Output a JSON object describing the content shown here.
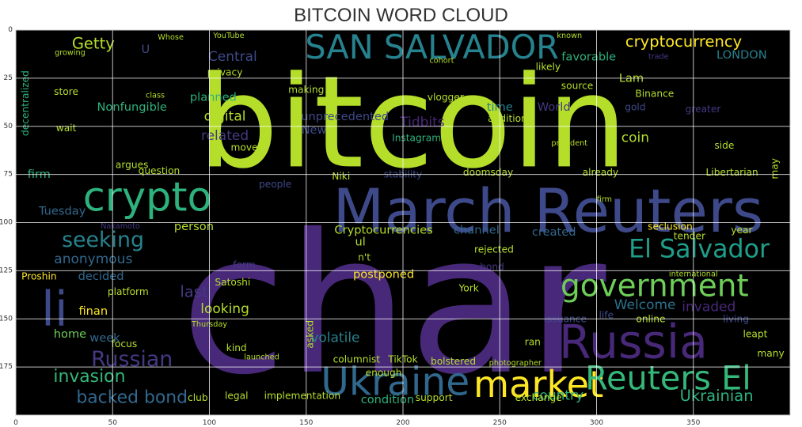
{
  "chart_data": {
    "type": "wordcloud",
    "title": "BITCOIN WORD CLOUD",
    "xlabel": "",
    "ylabel": "",
    "xlim": [
      0,
      400
    ],
    "ylim": [
      200,
      0
    ],
    "xticks": [
      0,
      50,
      100,
      150,
      200,
      250,
      300,
      350
    ],
    "yticks": [
      0,
      25,
      50,
      75,
      100,
      125,
      150,
      175
    ],
    "grid": true,
    "background": "#000000",
    "words": [
      {
        "text": "bitcoin",
        "x": 205,
        "y": 48,
        "size": 66,
        "color": "#b5de2b"
      },
      {
        "text": "char",
        "x": 195,
        "y": 143,
        "size": 100,
        "color": "#482878"
      },
      {
        "text": "crypto",
        "x": 68,
        "y": 87,
        "size": 21,
        "color": "#2db27d"
      },
      {
        "text": "March Reuters",
        "x": 275,
        "y": 94,
        "size": 31,
        "color": "#3e4989"
      },
      {
        "text": "SAN SALVADOR",
        "x": 215,
        "y": 9,
        "size": 17,
        "color": "#26828e"
      },
      {
        "text": "cryptocurrency",
        "x": 345,
        "y": 6,
        "size": 8,
        "color": "#fde725"
      },
      {
        "text": "Ukraine",
        "x": 196,
        "y": 183,
        "size": 20,
        "color": "#31688e"
      },
      {
        "text": "Russia",
        "x": 319,
        "y": 162,
        "size": 24,
        "color": "#482878"
      },
      {
        "text": "government",
        "x": 330,
        "y": 133,
        "size": 16,
        "color": "#6ece58"
      },
      {
        "text": "market",
        "x": 270,
        "y": 184,
        "size": 19,
        "color": "#fde725"
      },
      {
        "text": "Reuters El",
        "x": 337,
        "y": 181,
        "size": 17,
        "color": "#35b779"
      },
      {
        "text": "El Salvador",
        "x": 353,
        "y": 114,
        "size": 13,
        "color": "#1f9e89"
      },
      {
        "text": "li",
        "x": 20,
        "y": 145,
        "size": 25,
        "color": "#3e4989"
      },
      {
        "text": "seeking",
        "x": 45,
        "y": 109,
        "size": 11,
        "color": "#26828e"
      },
      {
        "text": "Russian",
        "x": 60,
        "y": 171,
        "size": 11,
        "color": "#443983"
      },
      {
        "text": "invasion",
        "x": 38,
        "y": 180,
        "size": 9,
        "color": "#35b779"
      },
      {
        "text": "backed bond",
        "x": 60,
        "y": 191,
        "size": 9,
        "color": "#31688e"
      },
      {
        "text": "anonymous",
        "x": 40,
        "y": 119,
        "size": 7,
        "color": "#31688e"
      },
      {
        "text": "Welcome",
        "x": 325,
        "y": 143,
        "size": 7,
        "color": "#2c728e"
      },
      {
        "text": "invaded",
        "x": 358,
        "y": 144,
        "size": 7,
        "color": "#482878"
      },
      {
        "text": "country",
        "x": 280,
        "y": 190,
        "size": 7,
        "color": "#2db27d"
      },
      {
        "text": "Ukrainian",
        "x": 362,
        "y": 190,
        "size": 8,
        "color": "#2db27d"
      },
      {
        "text": "Getty",
        "x": 40,
        "y": 7,
        "size": 8,
        "color": "#b5de2b"
      },
      {
        "text": "Central",
        "x": 112,
        "y": 14,
        "size": 7,
        "color": "#3e4989"
      },
      {
        "text": "favorable",
        "x": 296,
        "y": 14,
        "size": 6,
        "color": "#2db27d"
      },
      {
        "text": "LONDON",
        "x": 375,
        "y": 13,
        "size": 6,
        "color": "#26828e"
      },
      {
        "text": "digital",
        "x": 108,
        "y": 45,
        "size": 7,
        "color": "#b5de2b"
      },
      {
        "text": "related",
        "x": 108,
        "y": 55,
        "size": 7,
        "color": "#443983"
      },
      {
        "text": "planned",
        "x": 102,
        "y": 35,
        "size": 6,
        "color": "#2db27d"
      },
      {
        "text": "Tidbits",
        "x": 210,
        "y": 48,
        "size": 7,
        "color": "#482878"
      },
      {
        "text": "New",
        "x": 154,
        "y": 52,
        "size": 6,
        "color": "#3e4989"
      },
      {
        "text": "coin",
        "x": 320,
        "y": 56,
        "size": 7,
        "color": "#b5de2b"
      },
      {
        "text": "Cryptocurrencies",
        "x": 190,
        "y": 104,
        "size": 6,
        "color": "#b5de2b"
      },
      {
        "text": "channel",
        "x": 238,
        "y": 104,
        "size": 6,
        "color": "#31688e"
      },
      {
        "text": "created",
        "x": 278,
        "y": 105,
        "size": 6,
        "color": "#31688e"
      },
      {
        "text": "person",
        "x": 92,
        "y": 102,
        "size": 6,
        "color": "#b5de2b"
      },
      {
        "text": "Tuesday",
        "x": 24,
        "y": 94,
        "size": 6,
        "color": "#31688e"
      },
      {
        "text": "last",
        "x": 92,
        "y": 136,
        "size": 8,
        "color": "#443983"
      },
      {
        "text": "looking",
        "x": 108,
        "y": 145,
        "size": 7,
        "color": "#b5de2b"
      },
      {
        "text": "decided",
        "x": 44,
        "y": 128,
        "size": 6,
        "color": "#31688e"
      },
      {
        "text": "postponed",
        "x": 190,
        "y": 127,
        "size": 6,
        "color": "#fde725"
      },
      {
        "text": "volatile",
        "x": 165,
        "y": 160,
        "size": 7,
        "color": "#26828e"
      },
      {
        "text": "home",
        "x": 28,
        "y": 158,
        "size": 6,
        "color": "#6ece58"
      },
      {
        "text": "week",
        "x": 46,
        "y": 160,
        "size": 6,
        "color": "#31688e"
      },
      {
        "text": "finan",
        "x": 40,
        "y": 146,
        "size": 6,
        "color": "#fde725"
      },
      {
        "text": "condition",
        "x": 192,
        "y": 192,
        "size": 6,
        "color": "#2db27d"
      },
      {
        "text": "Nonfungible",
        "x": 60,
        "y": 40,
        "size": 6,
        "color": "#2db27d"
      },
      {
        "text": "unprecedented",
        "x": 170,
        "y": 45,
        "size": 6,
        "color": "#3e4989"
      },
      {
        "text": "World",
        "x": 278,
        "y": 40,
        "size": 6,
        "color": "#443983"
      },
      {
        "text": "time",
        "x": 250,
        "y": 40,
        "size": 6,
        "color": "#26828e"
      },
      {
        "text": "Lam",
        "x": 318,
        "y": 25,
        "size": 6,
        "color": "#b5de2b"
      },
      {
        "text": "U",
        "x": 67,
        "y": 10,
        "size": 6,
        "color": "#3e4989"
      },
      {
        "text": "firm",
        "x": 12,
        "y": 75,
        "size": 6,
        "color": "#2db27d"
      },
      {
        "text": "argues",
        "x": 60,
        "y": 70,
        "size": 5,
        "color": "#b5de2b"
      },
      {
        "text": "Proshin",
        "x": 12,
        "y": 128,
        "size": 5,
        "color": "#fde725"
      },
      {
        "text": "platform",
        "x": 58,
        "y": 136,
        "size": 5,
        "color": "#b5de2b"
      },
      {
        "text": "Niki",
        "x": 168,
        "y": 76,
        "size": 5,
        "color": "#b5de2b"
      },
      {
        "text": "stability",
        "x": 200,
        "y": 75,
        "size": 5,
        "color": "#3e4989"
      },
      {
        "text": "Instagram",
        "x": 207,
        "y": 56,
        "size": 5,
        "color": "#2db27d"
      },
      {
        "text": "vlogger",
        "x": 222,
        "y": 35,
        "size": 5,
        "color": "#b5de2b"
      },
      {
        "text": "making",
        "x": 150,
        "y": 31,
        "size": 5,
        "color": "#b5de2b"
      },
      {
        "text": "privacy",
        "x": 108,
        "y": 22,
        "size": 5,
        "color": "#b5de2b"
      },
      {
        "text": "YouTube",
        "x": 110,
        "y": 3,
        "size": 4,
        "color": "#b5de2b"
      },
      {
        "text": "Satoshi",
        "x": 112,
        "y": 131,
        "size": 5,
        "color": "#b5de2b"
      },
      {
        "text": "York",
        "x": 234,
        "y": 134,
        "size": 5,
        "color": "#b5de2b"
      },
      {
        "text": "issuance",
        "x": 284,
        "y": 150,
        "size": 5,
        "color": "#3e4989"
      },
      {
        "text": "online",
        "x": 328,
        "y": 150,
        "size": 5,
        "color": "#b5de2b"
      },
      {
        "text": "living",
        "x": 372,
        "y": 150,
        "size": 5,
        "color": "#3e4989"
      },
      {
        "text": "leapt",
        "x": 382,
        "y": 158,
        "size": 5,
        "color": "#b5de2b"
      },
      {
        "text": "many",
        "x": 390,
        "y": 168,
        "size": 5,
        "color": "#b5de2b"
      },
      {
        "text": "columnist",
        "x": 176,
        "y": 171,
        "size": 5,
        "color": "#b5de2b"
      },
      {
        "text": "bolstered",
        "x": 226,
        "y": 172,
        "size": 5,
        "color": "#b5de2b"
      },
      {
        "text": "implementation",
        "x": 148,
        "y": 190,
        "size": 5,
        "color": "#b5de2b"
      },
      {
        "text": "support",
        "x": 216,
        "y": 191,
        "size": 5,
        "color": "#b5de2b"
      },
      {
        "text": "exchange",
        "x": 270,
        "y": 191,
        "size": 5,
        "color": "#b5de2b"
      },
      {
        "text": "legal",
        "x": 114,
        "y": 190,
        "size": 5,
        "color": "#b5de2b"
      },
      {
        "text": "club",
        "x": 94,
        "y": 191,
        "size": 5,
        "color": "#b5de2b"
      },
      {
        "text": "rejected",
        "x": 247,
        "y": 114,
        "size": 5,
        "color": "#b5de2b"
      },
      {
        "text": "bond",
        "x": 246,
        "y": 123,
        "size": 5,
        "color": "#443983"
      },
      {
        "text": "seclusion",
        "x": 338,
        "y": 102,
        "size": 5,
        "color": "#fde725"
      },
      {
        "text": "tender",
        "x": 348,
        "y": 107,
        "size": 5,
        "color": "#b5de2b"
      },
      {
        "text": "year",
        "x": 375,
        "y": 104,
        "size": 5,
        "color": "#b5de2b"
      },
      {
        "text": "Binance",
        "x": 330,
        "y": 33,
        "size": 5,
        "color": "#b5de2b"
      },
      {
        "text": "gold",
        "x": 320,
        "y": 40,
        "size": 5,
        "color": "#3e4989"
      },
      {
        "text": "greater",
        "x": 355,
        "y": 41,
        "size": 5,
        "color": "#443983"
      },
      {
        "text": "Libertarian",
        "x": 370,
        "y": 74,
        "size": 5,
        "color": "#b5de2b"
      },
      {
        "text": "already",
        "x": 302,
        "y": 74,
        "size": 5,
        "color": "#b5de2b"
      },
      {
        "text": "side",
        "x": 366,
        "y": 60,
        "size": 5,
        "color": "#b5de2b"
      },
      {
        "text": "source",
        "x": 290,
        "y": 29,
        "size": 5,
        "color": "#b5de2b"
      },
      {
        "text": "likely",
        "x": 275,
        "y": 19,
        "size": 5,
        "color": "#b5de2b"
      },
      {
        "text": "wait",
        "x": 26,
        "y": 51,
        "size": 5,
        "color": "#b5de2b"
      },
      {
        "text": "store",
        "x": 26,
        "y": 32,
        "size": 5,
        "color": "#b5de2b"
      },
      {
        "text": "move",
        "x": 118,
        "y": 61,
        "size": 5,
        "color": "#b5de2b"
      },
      {
        "text": "question",
        "x": 74,
        "y": 73,
        "size": 5,
        "color": "#b5de2b"
      },
      {
        "text": "people",
        "x": 134,
        "y": 80,
        "size": 5,
        "color": "#3e4989"
      },
      {
        "text": "form",
        "x": 118,
        "y": 122,
        "size": 5,
        "color": "#443983"
      },
      {
        "text": "kind",
        "x": 114,
        "y": 165,
        "size": 5,
        "color": "#b5de2b"
      },
      {
        "text": "focus",
        "x": 56,
        "y": 163,
        "size": 5,
        "color": "#b5de2b"
      },
      {
        "text": "ran",
        "x": 267,
        "y": 162,
        "size": 5,
        "color": "#b5de2b"
      },
      {
        "text": "enough",
        "x": 190,
        "y": 178,
        "size": 5,
        "color": "#b5de2b"
      },
      {
        "text": "TikTok",
        "x": 200,
        "y": 171,
        "size": 5,
        "color": "#b5de2b"
      },
      {
        "text": "n't",
        "x": 180,
        "y": 118,
        "size": 5,
        "color": "#b5de2b"
      },
      {
        "text": "ul",
        "x": 178,
        "y": 110,
        "size": 6,
        "color": "#b5de2b"
      },
      {
        "text": "addition",
        "x": 254,
        "y": 46,
        "size": 5,
        "color": "#b5de2b"
      },
      {
        "text": "doomsday",
        "x": 244,
        "y": 74,
        "size": 5,
        "color": "#b5de2b"
      },
      {
        "text": "decentralized",
        "x": 5,
        "y": 38,
        "size": 5,
        "color": "#2db27d",
        "rotate": -90
      },
      {
        "text": "may",
        "x": 392,
        "y": 72,
        "size": 5,
        "color": "#b5de2b",
        "rotate": -90
      },
      {
        "text": "asked",
        "x": 152,
        "y": 158,
        "size": 5,
        "color": "#b5de2b",
        "rotate": -90
      },
      {
        "text": "life",
        "x": 305,
        "y": 148,
        "size": 5,
        "color": "#3e4989"
      },
      {
        "text": "Whose",
        "x": 80,
        "y": 4,
        "size": 4,
        "color": "#b5de2b"
      },
      {
        "text": "growing",
        "x": 28,
        "y": 12,
        "size": 4,
        "color": "#b5de2b"
      },
      {
        "text": "class",
        "x": 72,
        "y": 34,
        "size": 4,
        "color": "#b5de2b"
      },
      {
        "text": "cohort",
        "x": 220,
        "y": 16,
        "size": 4,
        "color": "#b5de2b"
      },
      {
        "text": "known",
        "x": 286,
        "y": 3,
        "size": 4,
        "color": "#b5de2b"
      },
      {
        "text": "trade",
        "x": 332,
        "y": 14,
        "size": 4,
        "color": "#443983"
      },
      {
        "text": "president",
        "x": 286,
        "y": 59,
        "size": 4,
        "color": "#b5de2b"
      },
      {
        "text": "firm",
        "x": 304,
        "y": 88,
        "size": 4,
        "color": "#b5de2b"
      },
      {
        "text": "photographer",
        "x": 258,
        "y": 173,
        "size": 4,
        "color": "#b5de2b"
      },
      {
        "text": "Thursday",
        "x": 100,
        "y": 153,
        "size": 4,
        "color": "#b5de2b"
      },
      {
        "text": "launched",
        "x": 127,
        "y": 170,
        "size": 4,
        "color": "#b5de2b"
      },
      {
        "text": "Nakamoto",
        "x": 54,
        "y": 102,
        "size": 4,
        "color": "#443983"
      },
      {
        "text": "international",
        "x": 350,
        "y": 127,
        "size": 4,
        "color": "#b5de2b"
      }
    ]
  }
}
